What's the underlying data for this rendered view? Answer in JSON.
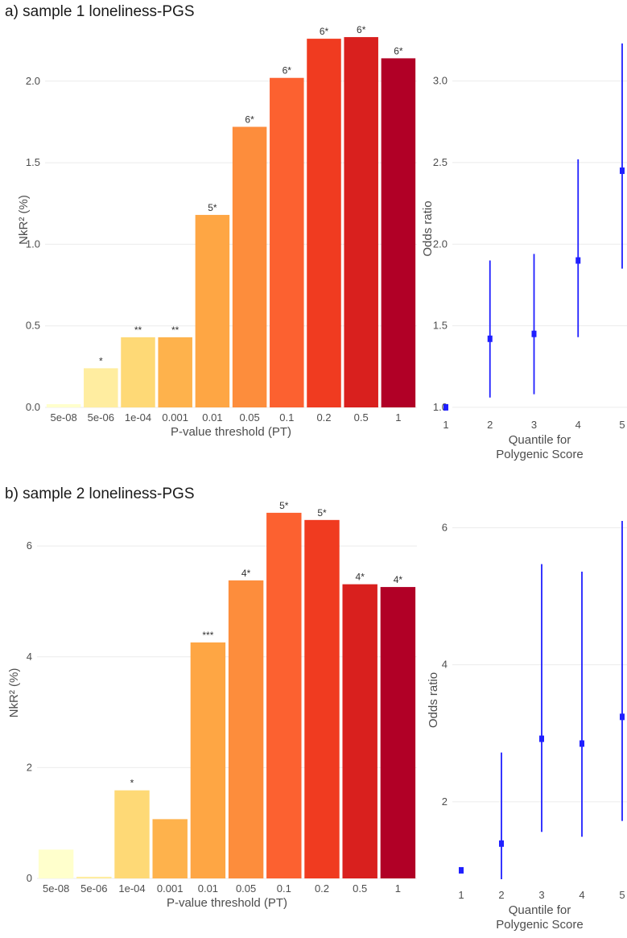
{
  "panels": [
    {
      "title": "a) sample 1 loneliness-PGS"
    },
    {
      "title": "b) sample 2 loneliness-PGS"
    }
  ],
  "colors": {
    "bars": [
      "#ffffcc",
      "#ffeda0",
      "#fed976",
      "#feb24c",
      "#fea644",
      "#fd8d3c",
      "#fc6130",
      "#f03b20",
      "#d9201e",
      "#b10026"
    ],
    "or_marker": "#1f1fff",
    "grid": "#ebebeb"
  },
  "chart_data": [
    {
      "type": "bar",
      "panel": "a",
      "categories": [
        "5e-08",
        "5e-06",
        "1e-04",
        "0.001",
        "0.01",
        "0.05",
        "0.1",
        "0.2",
        "0.5",
        "1"
      ],
      "values": [
        0.02,
        0.24,
        0.43,
        0.43,
        1.18,
        1.72,
        2.02,
        2.26,
        2.27,
        2.14
      ],
      "labels": [
        "",
        "*",
        "**",
        "**",
        "5*",
        "6*",
        "6*",
        "6*",
        "6*",
        "6*"
      ],
      "xlabel": "P-value threshold (PT)",
      "ylabel": "NkR² (%)",
      "ylim": [
        0,
        2.3
      ],
      "yticks": [
        0.0,
        0.5,
        1.0,
        1.5,
        2.0
      ],
      "ytick_labels": [
        "0.0",
        "0.5",
        "1.0",
        "1.5",
        "2.0"
      ],
      "grid": true
    },
    {
      "type": "scatter",
      "panel": "a",
      "x": [
        1,
        2,
        3,
        4,
        5
      ],
      "y": [
        1.0,
        1.42,
        1.45,
        1.9,
        2.45
      ],
      "ci_low": [
        1.0,
        1.06,
        1.08,
        1.43,
        1.85
      ],
      "ci_high": [
        1.0,
        1.9,
        1.94,
        2.52,
        3.23
      ],
      "xlabel": "Quantile for Polygenic Score",
      "xlabel_lines": [
        "Quantile for",
        "Polygenic Score"
      ],
      "ylabel": "Odds ratio",
      "ylim": [
        0.96,
        3.23
      ],
      "yticks": [
        1.0,
        1.5,
        2.0,
        2.5,
        3.0
      ],
      "ytick_labels": [
        "1.0",
        "1.5",
        "2.0",
        "2.5",
        "3.0"
      ],
      "xticks": [
        "1",
        "2",
        "3",
        "4",
        "5"
      ],
      "grid": true
    },
    {
      "type": "bar",
      "panel": "b",
      "categories": [
        "5e-08",
        "5e-06",
        "1e-04",
        "0.001",
        "0.01",
        "0.05",
        "0.1",
        "0.2",
        "0.5",
        "1"
      ],
      "values": [
        0.52,
        0.03,
        1.59,
        1.07,
        4.26,
        5.38,
        6.6,
        6.47,
        5.31,
        5.26
      ],
      "labels": [
        "",
        "",
        "*",
        "",
        "***",
        "4*",
        "5*",
        "5*",
        "4*",
        "4*"
      ],
      "xlabel": "P-value threshold (PT)",
      "ylabel": "NkR² (%)",
      "ylim": [
        0,
        6.7
      ],
      "yticks": [
        0,
        2,
        4,
        6
      ],
      "ytick_labels": [
        "0",
        "2",
        "4",
        "6"
      ],
      "grid": true
    },
    {
      "type": "scatter",
      "panel": "b",
      "x": [
        1,
        2,
        3,
        4,
        5
      ],
      "y": [
        1.0,
        1.39,
        2.92,
        2.85,
        3.24
      ],
      "ci_low": [
        1.0,
        0.87,
        1.56,
        1.49,
        1.72
      ],
      "ci_high": [
        1.0,
        2.72,
        5.47,
        5.36,
        6.1
      ],
      "xlabel": "Quantile for Polygenic Score",
      "xlabel_lines": [
        "Quantile for",
        "Polygenic Score"
      ],
      "ylabel": "Odds ratio",
      "ylim": [
        0.87,
        6.1
      ],
      "yticks": [
        2,
        4,
        6
      ],
      "ytick_labels": [
        "2",
        "4",
        "6"
      ],
      "xticks": [
        "1",
        "2",
        "3",
        "4",
        "5"
      ],
      "grid": true
    }
  ]
}
